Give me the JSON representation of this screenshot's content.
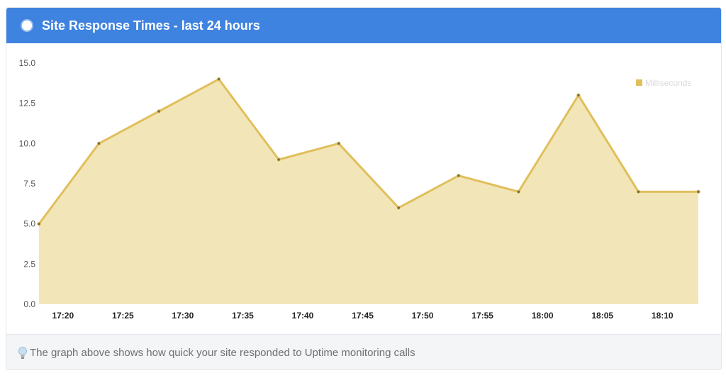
{
  "header": {
    "title": "Site Response Times - last 24 hours",
    "icon": "status-dot-icon"
  },
  "footer": {
    "icon": "lightbulb-icon",
    "text": "The graph above shows how quick your site responded to Uptime monitoring calls"
  },
  "colors": {
    "header_bg": "#3f83e0",
    "series_line": "#e0bf5c",
    "series_fill": "#f2e6b8"
  },
  "chart_data": {
    "type": "area",
    "title": "",
    "xlabel": "",
    "ylabel": "",
    "ylim": [
      0,
      15
    ],
    "y_ticks": [
      "0.0",
      "2.5",
      "5.0",
      "7.5",
      "10.0",
      "12.5",
      "15.0"
    ],
    "x_ticks": [
      "17:20",
      "17:25",
      "17:30",
      "17:35",
      "17:40",
      "17:45",
      "17:50",
      "17:55",
      "18:00",
      "18:05",
      "18:10"
    ],
    "x": [
      "17:18",
      "17:23",
      "17:28",
      "17:33",
      "17:38",
      "17:43",
      "17:48",
      "17:53",
      "17:58",
      "18:03",
      "18:08",
      "18:13"
    ],
    "series": [
      {
        "name": "Milliseconds",
        "values": [
          5,
          10,
          12,
          14,
          9,
          10,
          6,
          8,
          7,
          13,
          7,
          7
        ]
      }
    ],
    "legend_position": "top-right",
    "grid": false
  }
}
